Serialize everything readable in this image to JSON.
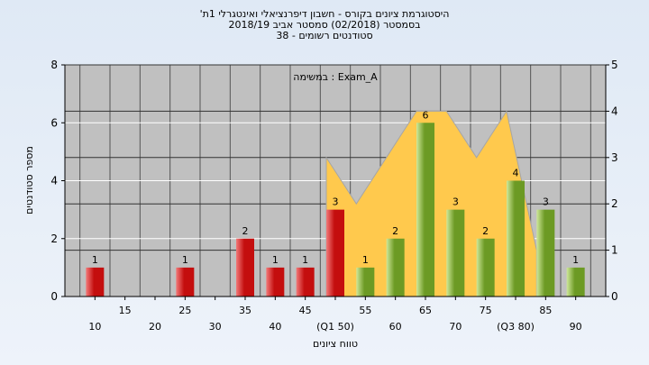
{
  "title_lines": [
    "היסטוגרמת ציונים בקורס - חשבון דיפרנציאלי ואינטגרלי 1ת'",
    "בסמסטר  (02/2018)  סמסטר אביב 2018/19",
    "סטודנטים רשומים - 38"
  ],
  "annotation": "במשימה : Exam_A",
  "chart_data": {
    "type": "bar",
    "title": "היסטוגרמת ציונים בקורס - חשבון דיפרנציאלי ואינטגרלי 1ת'",
    "xlabel": "טווח ציונים",
    "ylabel": "מספר סטודנטים",
    "ylim": [
      0,
      8
    ],
    "y2lim": [
      0,
      5
    ],
    "yticks": [
      0,
      2,
      4,
      6,
      8
    ],
    "y2ticks": [
      0,
      1,
      2,
      3,
      4,
      5
    ],
    "grid": true,
    "categories": [
      "10",
      "15",
      "20",
      "25",
      "30",
      "35",
      "40",
      "45",
      "50",
      "55",
      "60",
      "65",
      "70",
      "75",
      "80",
      "85",
      "90"
    ],
    "tick_labels": [
      "10",
      "15",
      "20",
      "25",
      "30",
      "35",
      "40",
      "45",
      "(Q1 50)",
      "55",
      "60",
      "65",
      "70",
      "75",
      "(Q3 80)",
      "85",
      "90"
    ],
    "values": [
      1,
      0,
      0,
      1,
      0,
      2,
      1,
      1,
      3,
      1,
      2,
      6,
      3,
      2,
      4,
      3,
      1
    ],
    "bar_colors": [
      "red",
      "red",
      "red",
      "red",
      "red",
      "red",
      "red",
      "red",
      "red",
      "green",
      "green",
      "green",
      "green",
      "green",
      "green",
      "green",
      "green"
    ],
    "area_series": {
      "categories": [
        "50",
        "55",
        "60",
        "65",
        "70",
        "75",
        "80",
        "85"
      ],
      "values": [
        3,
        2,
        3,
        4,
        4,
        3,
        4,
        1
      ]
    },
    "colors": {
      "red_light": "#f27a7a",
      "red_dark": "#c40e0e",
      "green_light": "#cfe89a",
      "green_dark": "#6c9a24",
      "area": "#ffc94d",
      "plot_bg": "#c0c0c0"
    }
  }
}
